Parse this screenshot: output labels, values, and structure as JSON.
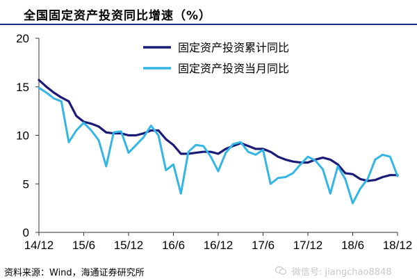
{
  "title": "全国固定资产投资同比增速（%）",
  "source": "资料来源：Wind，海通证券研究所",
  "watermark": "微信号: jiangchao8848",
  "chart_data": {
    "type": "line",
    "title": "全国固定资产投资同比增速（%）",
    "ylim": [
      0,
      20
    ],
    "yticks": [
      0,
      5,
      10,
      15,
      20
    ],
    "xtick_labels": [
      "14/12",
      "15/6",
      "15/12",
      "16/6",
      "16/12",
      "17/6",
      "17/12",
      "18/6",
      "18/12"
    ],
    "x": [
      "14/12",
      "15/1",
      "15/2",
      "15/3",
      "15/4",
      "15/5",
      "15/6",
      "15/7",
      "15/8",
      "15/9",
      "15/10",
      "15/11",
      "15/12",
      "16/1",
      "16/2",
      "16/3",
      "16/4",
      "16/5",
      "16/6",
      "16/7",
      "16/8",
      "16/9",
      "16/10",
      "16/11",
      "16/12",
      "17/1",
      "17/2",
      "17/3",
      "17/4",
      "17/5",
      "17/6",
      "17/7",
      "17/8",
      "17/9",
      "17/10",
      "17/11",
      "17/12",
      "18/1",
      "18/2",
      "18/3",
      "18/4",
      "18/5",
      "18/6",
      "18/7",
      "18/8",
      "18/9",
      "18/10",
      "18/11",
      "18/12"
    ],
    "legend_position": "top-right",
    "series": [
      {
        "name": "固定资产投资累计同比",
        "color": "#1a1a78",
        "values": [
          15.7,
          15.0,
          14.4,
          13.9,
          13.5,
          12.0,
          11.4,
          11.2,
          10.9,
          10.3,
          10.2,
          10.2,
          10.0,
          10.0,
          10.2,
          10.5,
          10.5,
          9.6,
          9.0,
          8.1,
          8.1,
          8.2,
          8.3,
          8.3,
          8.1,
          8.6,
          8.9,
          9.2,
          8.9,
          8.6,
          8.6,
          8.3,
          7.8,
          7.5,
          7.3,
          7.2,
          7.2,
          7.5,
          7.7,
          7.5,
          7.0,
          6.1,
          6.0,
          5.5,
          5.3,
          5.4,
          5.7,
          5.9,
          5.9
        ]
      },
      {
        "name": "固定资产投资当月同比",
        "color": "#33b5e5",
        "values": [
          14.9,
          14.4,
          13.8,
          13.5,
          9.3,
          10.5,
          11.3,
          10.5,
          9.5,
          6.8,
          10.3,
          10.4,
          8.2,
          9.0,
          9.8,
          11.0,
          10.0,
          6.4,
          7.0,
          4.0,
          8.3,
          9.0,
          8.9,
          7.8,
          6.3,
          8.2,
          9.1,
          9.3,
          8.3,
          8.0,
          8.5,
          5.0,
          5.6,
          5.7,
          6.1,
          7.0,
          7.8,
          7.4,
          6.5,
          4.0,
          6.8,
          5.5,
          3.0,
          4.5,
          5.5,
          7.5,
          8.0,
          7.8,
          5.8
        ]
      }
    ]
  }
}
